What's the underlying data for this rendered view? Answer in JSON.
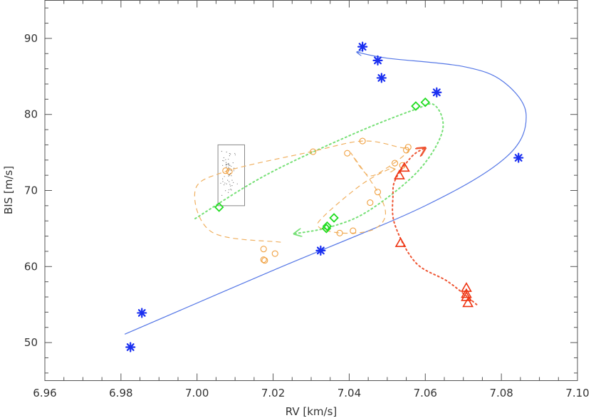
{
  "chart_data": {
    "type": "scatter",
    "title": "",
    "xlabel": "RV [km/s]",
    "ylabel": "BIS [m/s]",
    "xlim": [
      6.96,
      7.1
    ],
    "ylim": [
      45,
      95
    ],
    "grid": false,
    "x_ticks": [
      "6.96",
      "6.98",
      "7.00",
      "7.02",
      "7.04",
      "7.06",
      "7.08",
      "7.10"
    ],
    "y_ticks": [
      "50",
      "60",
      "70",
      "80",
      "90"
    ],
    "box": {
      "x": [
        7.0055,
        7.0125
      ],
      "y": [
        68.0,
        76.0
      ]
    },
    "series": [
      {
        "name": "asterisks",
        "marker": "asterisk",
        "color": "#1a2ff0",
        "points": [
          [
            6.9825,
            49.4
          ],
          [
            6.9855,
            53.9
          ],
          [
            7.0325,
            62.1
          ],
          [
            7.0845,
            74.3
          ],
          [
            7.063,
            82.9
          ],
          [
            7.0485,
            84.8
          ],
          [
            7.0475,
            87.1
          ],
          [
            7.0435,
            88.9
          ]
        ],
        "track": {
          "color": "#5577e6",
          "style": "solid",
          "points": [
            [
              6.981,
              51.1
            ],
            [
              7.02,
              59.5
            ],
            [
              7.06,
              68.0
            ],
            [
              7.0815,
              74.5
            ],
            [
              7.0865,
              80.0
            ],
            [
              7.0805,
              84.3
            ],
            [
              7.07,
              86.3
            ],
            [
              7.05,
              87.4
            ],
            [
              7.042,
              88.2
            ]
          ]
        }
      },
      {
        "name": "diamonds",
        "marker": "diamond",
        "color": "#22dd22",
        "points": [
          [
            7.0058,
            67.8
          ],
          [
            7.034,
            65.0
          ],
          [
            7.0342,
            65.3
          ],
          [
            7.036,
            66.4
          ],
          [
            7.0575,
            81.1
          ],
          [
            7.06,
            81.6
          ]
        ],
        "track": {
          "color": "#77e077",
          "style": "dotted",
          "points": [
            [
              6.9995,
              66.3
            ],
            [
              7.018,
              72.0
            ],
            [
              7.04,
              77.2
            ],
            [
              7.057,
              80.6
            ],
            [
              7.0625,
              81.2
            ],
            [
              7.0645,
              77.8
            ],
            [
              7.058,
              72.5
            ],
            [
              7.045,
              67.3
            ],
            [
              7.035,
              65.2
            ],
            [
              7.0255,
              64.3
            ]
          ]
        }
      },
      {
        "name": "circles",
        "marker": "circle",
        "color": "#f0a040",
        "points": [
          [
            7.0075,
            72.6
          ],
          [
            7.0085,
            72.5
          ],
          [
            7.0305,
            75.1
          ],
          [
            7.0435,
            76.5
          ],
          [
            7.0395,
            74.9
          ],
          [
            7.052,
            73.6
          ],
          [
            7.054,
            73.3
          ],
          [
            7.055,
            75.3
          ],
          [
            7.0555,
            75.7
          ],
          [
            7.0475,
            69.8
          ],
          [
            7.0455,
            68.4
          ],
          [
            7.041,
            64.7
          ],
          [
            7.0375,
            64.4
          ],
          [
            7.0175,
            62.3
          ],
          [
            7.0205,
            61.7
          ],
          [
            7.0175,
            60.9
          ],
          [
            7.0178,
            60.8
          ]
        ],
        "track": {
          "color": "#f0b060",
          "style": "dashed",
          "points": [
            [
              7.022,
              63.2
            ],
            [
              7.004,
              64.5
            ],
            [
              6.9995,
              70.0
            ],
            [
              7.0075,
              72.5
            ],
            [
              7.03,
              75.1
            ],
            [
              7.0435,
              76.5
            ],
            [
              7.053,
              75.7
            ],
            [
              7.0555,
              75.2
            ],
            [
              7.05,
              73.0
            ],
            [
              7.045,
              72.0
            ],
            [
              7.0405,
              74.9
            ],
            [
              7.0475,
              69.8
            ],
            [
              7.0495,
              66.7
            ],
            [
              7.046,
              64.8
            ],
            [
              7.038,
              64.4
            ],
            [
              7.032,
              65.2
            ],
            [
              7.0335,
              66.7
            ],
            [
              7.043,
              70.7
            ],
            [
              7.05,
              72.7
            ],
            [
              7.052,
              72.8
            ]
          ]
        }
      },
      {
        "name": "triangles",
        "marker": "triangle",
        "color": "#ee3311",
        "points": [
          [
            7.0532,
            72.0
          ],
          [
            7.0545,
            73.0
          ],
          [
            7.0535,
            63.1
          ],
          [
            7.0708,
            57.2
          ],
          [
            7.0708,
            56.4
          ],
          [
            7.0708,
            56.0
          ],
          [
            7.0712,
            55.2
          ]
        ],
        "track": {
          "color": "#ee5533",
          "style": "dotted",
          "points": [
            [
              7.0735,
              55.0
            ],
            [
              7.066,
              58.0
            ],
            [
              7.0575,
              60.5
            ],
            [
              7.052,
              65.5
            ],
            [
              7.0515,
              69.3
            ],
            [
              7.0522,
              71.5
            ],
            [
              7.0565,
              74.5
            ],
            [
              7.06,
              75.6
            ]
          ]
        }
      }
    ]
  }
}
